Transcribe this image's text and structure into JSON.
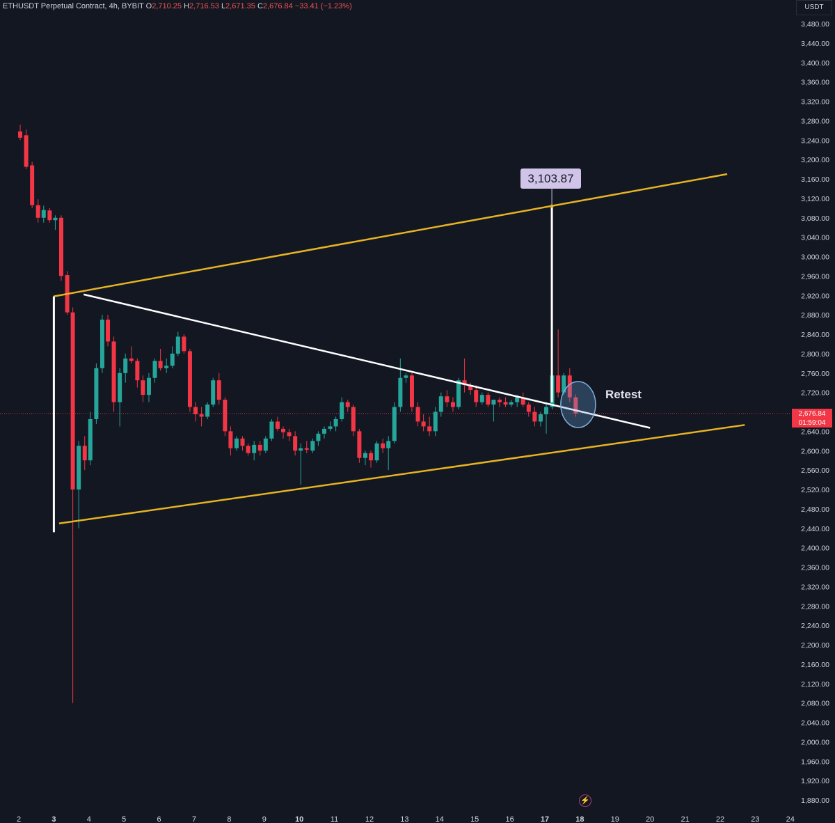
{
  "header": {
    "symbol": "ETHUSDT Perpetual Contract, 4h, BYBIT",
    "open_label": "O",
    "open": "2,710.25",
    "high_label": "H",
    "high": "2,716.53",
    "low_label": "L",
    "low": "2,671.35",
    "close_label": "C",
    "close": "2,676.84",
    "change": "−33.41 (−1.23%)"
  },
  "currency_button": "USDT",
  "current_price": {
    "price": "2,676.84",
    "countdown": "01:59:04"
  },
  "annotations": {
    "target_label": "3,103.87",
    "retest_label": "Retest"
  },
  "icons": {
    "replay": "lightning-icon"
  },
  "colors": {
    "background": "#131722",
    "up": "#26a69a",
    "down": "#f23645",
    "channel": "#e6b422",
    "trendline": "#ffffff",
    "price_line": "#f23645"
  },
  "chart_data": {
    "type": "candlestick",
    "title": "ETHUSDT Perpetual Contract, 4h, BYBIT",
    "ylim": [
      1860,
      3500
    ],
    "y_ticks": [
      3480,
      3440,
      3400,
      3360,
      3320,
      3280,
      3240,
      3200,
      3160,
      3120,
      3080,
      3040,
      3000,
      2960,
      2920,
      2880,
      2840,
      2800,
      2760,
      2720,
      2640,
      2600,
      2560,
      2520,
      2480,
      2440,
      2400,
      2360,
      2320,
      2280,
      2240,
      2200,
      2160,
      2120,
      2080,
      2040,
      2000,
      1960,
      1920,
      1880
    ],
    "y_tick_labels": [
      "3,480.00",
      "3,440.00",
      "3,400.00",
      "3,360.00",
      "3,320.00",
      "3,280.00",
      "3,240.00",
      "3,200.00",
      "3,160.00",
      "3,120.00",
      "3,080.00",
      "3,040.00",
      "3,000.00",
      "2,960.00",
      "2,920.00",
      "2,880.00",
      "2,840.00",
      "2,800.00",
      "2,760.00",
      "2,720.00",
      "2,640.00",
      "2,600.00",
      "2,560.00",
      "2,520.00",
      "2,480.00",
      "2,440.00",
      "2,400.00",
      "2,360.00",
      "2,320.00",
      "2,280.00",
      "2,240.00",
      "2,200.00",
      "2,160.00",
      "2,120.00",
      "2,080.00",
      "2,040.00",
      "2,000.00",
      "1,960.00",
      "1,920.00",
      "1,880.00"
    ],
    "x_ticks": [
      2,
      3,
      4,
      5,
      6,
      7,
      8,
      9,
      10,
      11,
      12,
      13,
      14,
      15,
      16,
      17,
      18,
      19,
      20,
      21,
      22,
      23,
      24
    ],
    "x_tick_labels": [
      "2",
      "3",
      "4",
      "5",
      "6",
      "7",
      "8",
      "9",
      "10",
      "11",
      "12",
      "13",
      "14",
      "15",
      "16",
      "17",
      "18",
      "19",
      "20",
      "21",
      "22",
      "23",
      "24"
    ],
    "x_tick_bold": [
      3,
      10,
      17,
      18
    ],
    "candles": [
      {
        "x": 2.04,
        "o": 3258,
        "h": 3272,
        "l": 3240,
        "c": 3245
      },
      {
        "x": 2.21,
        "o": 3250,
        "h": 3262,
        "l": 3180,
        "c": 3185
      },
      {
        "x": 2.38,
        "o": 3188,
        "h": 3195,
        "l": 3100,
        "c": 3106
      },
      {
        "x": 2.55,
        "o": 3106,
        "h": 3118,
        "l": 3070,
        "c": 3080
      },
      {
        "x": 2.71,
        "o": 3080,
        "h": 3105,
        "l": 3070,
        "c": 3096
      },
      {
        "x": 2.88,
        "o": 3095,
        "h": 3100,
        "l": 3070,
        "c": 3075
      },
      {
        "x": 3.04,
        "o": 3075,
        "h": 3085,
        "l": 3055,
        "c": 3080
      },
      {
        "x": 3.21,
        "o": 3080,
        "h": 3085,
        "l": 2950,
        "c": 2960
      },
      {
        "x": 3.38,
        "o": 2962,
        "h": 2970,
        "l": 2880,
        "c": 2885
      },
      {
        "x": 3.54,
        "o": 2885,
        "h": 2895,
        "l": 2080,
        "c": 2520
      },
      {
        "x": 3.71,
        "o": 2520,
        "h": 2620,
        "l": 2440,
        "c": 2610
      },
      {
        "x": 3.88,
        "o": 2610,
        "h": 2630,
        "l": 2560,
        "c": 2580
      },
      {
        "x": 4.04,
        "o": 2580,
        "h": 2680,
        "l": 2570,
        "c": 2665
      },
      {
        "x": 4.21,
        "o": 2665,
        "h": 2780,
        "l": 2655,
        "c": 2770
      },
      {
        "x": 4.38,
        "o": 2770,
        "h": 2880,
        "l": 2760,
        "c": 2870
      },
      {
        "x": 4.54,
        "o": 2870,
        "h": 2880,
        "l": 2815,
        "c": 2825
      },
      {
        "x": 4.71,
        "o": 2825,
        "h": 2835,
        "l": 2680,
        "c": 2700
      },
      {
        "x": 4.88,
        "o": 2700,
        "h": 2770,
        "l": 2650,
        "c": 2760
      },
      {
        "x": 5.04,
        "o": 2760,
        "h": 2800,
        "l": 2740,
        "c": 2790
      },
      {
        "x": 5.21,
        "o": 2790,
        "h": 2815,
        "l": 2780,
        "c": 2785
      },
      {
        "x": 5.38,
        "o": 2785,
        "h": 2790,
        "l": 2730,
        "c": 2745
      },
      {
        "x": 5.54,
        "o": 2745,
        "h": 2755,
        "l": 2700,
        "c": 2715
      },
      {
        "x": 5.71,
        "o": 2715,
        "h": 2760,
        "l": 2700,
        "c": 2750
      },
      {
        "x": 5.88,
        "o": 2750,
        "h": 2790,
        "l": 2740,
        "c": 2785
      },
      {
        "x": 6.04,
        "o": 2785,
        "h": 2810,
        "l": 2765,
        "c": 2770
      },
      {
        "x": 6.21,
        "o": 2770,
        "h": 2790,
        "l": 2760,
        "c": 2775
      },
      {
        "x": 6.38,
        "o": 2775,
        "h": 2815,
        "l": 2770,
        "c": 2800
      },
      {
        "x": 6.54,
        "o": 2800,
        "h": 2845,
        "l": 2795,
        "c": 2835
      },
      {
        "x": 6.71,
        "o": 2835,
        "h": 2840,
        "l": 2800,
        "c": 2805
      },
      {
        "x": 6.88,
        "o": 2805,
        "h": 2810,
        "l": 2680,
        "c": 2690
      },
      {
        "x": 7.04,
        "o": 2690,
        "h": 2700,
        "l": 2660,
        "c": 2675
      },
      {
        "x": 7.21,
        "o": 2675,
        "h": 2690,
        "l": 2650,
        "c": 2670
      },
      {
        "x": 7.38,
        "o": 2670,
        "h": 2700,
        "l": 2665,
        "c": 2695
      },
      {
        "x": 7.54,
        "o": 2695,
        "h": 2750,
        "l": 2690,
        "c": 2745
      },
      {
        "x": 7.71,
        "o": 2745,
        "h": 2760,
        "l": 2695,
        "c": 2705
      },
      {
        "x": 7.88,
        "o": 2705,
        "h": 2710,
        "l": 2630,
        "c": 2640
      },
      {
        "x": 8.04,
        "o": 2640,
        "h": 2650,
        "l": 2590,
        "c": 2605
      },
      {
        "x": 8.21,
        "o": 2605,
        "h": 2630,
        "l": 2600,
        "c": 2625
      },
      {
        "x": 8.38,
        "o": 2625,
        "h": 2630,
        "l": 2600,
        "c": 2610
      },
      {
        "x": 8.54,
        "o": 2610,
        "h": 2615,
        "l": 2590,
        "c": 2595
      },
      {
        "x": 8.71,
        "o": 2595,
        "h": 2620,
        "l": 2580,
        "c": 2612
      },
      {
        "x": 8.88,
        "o": 2612,
        "h": 2620,
        "l": 2590,
        "c": 2600
      },
      {
        "x": 9.04,
        "o": 2600,
        "h": 2630,
        "l": 2595,
        "c": 2625
      },
      {
        "x": 9.21,
        "o": 2625,
        "h": 2665,
        "l": 2620,
        "c": 2660
      },
      {
        "x": 9.38,
        "o": 2660,
        "h": 2670,
        "l": 2640,
        "c": 2645
      },
      {
        "x": 9.54,
        "o": 2645,
        "h": 2650,
        "l": 2625,
        "c": 2638
      },
      {
        "x": 9.71,
        "o": 2638,
        "h": 2645,
        "l": 2620,
        "c": 2630
      },
      {
        "x": 9.88,
        "o": 2630,
        "h": 2640,
        "l": 2590,
        "c": 2600
      },
      {
        "x": 10.04,
        "o": 2600,
        "h": 2615,
        "l": 2530,
        "c": 2605
      },
      {
        "x": 10.21,
        "o": 2605,
        "h": 2620,
        "l": 2595,
        "c": 2602
      },
      {
        "x": 10.38,
        "o": 2600,
        "h": 2625,
        "l": 2595,
        "c": 2620
      },
      {
        "x": 10.54,
        "o": 2620,
        "h": 2640,
        "l": 2610,
        "c": 2635
      },
      {
        "x": 10.71,
        "o": 2635,
        "h": 2650,
        "l": 2625,
        "c": 2645
      },
      {
        "x": 10.88,
        "o": 2645,
        "h": 2660,
        "l": 2640,
        "c": 2650
      },
      {
        "x": 11.04,
        "o": 2650,
        "h": 2670,
        "l": 2640,
        "c": 2665
      },
      {
        "x": 11.21,
        "o": 2665,
        "h": 2710,
        "l": 2660,
        "c": 2700
      },
      {
        "x": 11.38,
        "o": 2700,
        "h": 2705,
        "l": 2680,
        "c": 2690
      },
      {
        "x": 11.54,
        "o": 2690,
        "h": 2695,
        "l": 2630,
        "c": 2640
      },
      {
        "x": 11.71,
        "o": 2640,
        "h": 2645,
        "l": 2575,
        "c": 2585
      },
      {
        "x": 11.88,
        "o": 2585,
        "h": 2600,
        "l": 2570,
        "c": 2595
      },
      {
        "x": 12.04,
        "o": 2595,
        "h": 2600,
        "l": 2565,
        "c": 2580
      },
      {
        "x": 12.21,
        "o": 2580,
        "h": 2620,
        "l": 2575,
        "c": 2615
      },
      {
        "x": 12.38,
        "o": 2615,
        "h": 2625,
        "l": 2595,
        "c": 2605
      },
      {
        "x": 12.54,
        "o": 2605,
        "h": 2630,
        "l": 2560,
        "c": 2620
      },
      {
        "x": 12.71,
        "o": 2620,
        "h": 2700,
        "l": 2615,
        "c": 2690
      },
      {
        "x": 12.88,
        "o": 2690,
        "h": 2790,
        "l": 2680,
        "c": 2750
      },
      {
        "x": 13.04,
        "o": 2750,
        "h": 2760,
        "l": 2740,
        "c": 2755
      },
      {
        "x": 13.21,
        "o": 2755,
        "h": 2760,
        "l": 2680,
        "c": 2690
      },
      {
        "x": 13.38,
        "o": 2690,
        "h": 2700,
        "l": 2650,
        "c": 2660
      },
      {
        "x": 13.54,
        "o": 2660,
        "h": 2675,
        "l": 2640,
        "c": 2650
      },
      {
        "x": 13.71,
        "o": 2650,
        "h": 2670,
        "l": 2630,
        "c": 2640
      },
      {
        "x": 13.88,
        "o": 2640,
        "h": 2690,
        "l": 2630,
        "c": 2680
      },
      {
        "x": 14.04,
        "o": 2680,
        "h": 2720,
        "l": 2670,
        "c": 2712
      },
      {
        "x": 14.21,
        "o": 2712,
        "h": 2725,
        "l": 2690,
        "c": 2700
      },
      {
        "x": 14.38,
        "o": 2700,
        "h": 2710,
        "l": 2680,
        "c": 2690
      },
      {
        "x": 14.54,
        "o": 2690,
        "h": 2750,
        "l": 2685,
        "c": 2745
      },
      {
        "x": 14.71,
        "o": 2745,
        "h": 2790,
        "l": 2720,
        "c": 2735
      },
      {
        "x": 14.88,
        "o": 2735,
        "h": 2740,
        "l": 2715,
        "c": 2725
      },
      {
        "x": 15.04,
        "o": 2725,
        "h": 2735,
        "l": 2690,
        "c": 2700
      },
      {
        "x": 15.21,
        "o": 2700,
        "h": 2720,
        "l": 2695,
        "c": 2715
      },
      {
        "x": 15.38,
        "o": 2715,
        "h": 2720,
        "l": 2690,
        "c": 2695
      },
      {
        "x": 15.54,
        "o": 2695,
        "h": 2700,
        "l": 2660,
        "c": 2705
      },
      {
        "x": 15.71,
        "o": 2705,
        "h": 2710,
        "l": 2690,
        "c": 2700
      },
      {
        "x": 15.88,
        "o": 2700,
        "h": 2710,
        "l": 2690,
        "c": 2695
      },
      {
        "x": 16.04,
        "o": 2695,
        "h": 2705,
        "l": 2690,
        "c": 2700
      },
      {
        "x": 16.21,
        "o": 2700,
        "h": 2715,
        "l": 2690,
        "c": 2710
      },
      {
        "x": 16.38,
        "o": 2710,
        "h": 2720,
        "l": 2690,
        "c": 2695
      },
      {
        "x": 16.54,
        "o": 2695,
        "h": 2700,
        "l": 2670,
        "c": 2680
      },
      {
        "x": 16.71,
        "o": 2680,
        "h": 2690,
        "l": 2650,
        "c": 2660
      },
      {
        "x": 16.88,
        "o": 2660,
        "h": 2680,
        "l": 2650,
        "c": 2675
      },
      {
        "x": 17.04,
        "o": 2675,
        "h": 2700,
        "l": 2635,
        "c": 2690
      },
      {
        "x": 17.21,
        "o": 2690,
        "h": 2760,
        "l": 2685,
        "c": 2755
      },
      {
        "x": 17.38,
        "o": 2755,
        "h": 2850,
        "l": 2710,
        "c": 2720
      },
      {
        "x": 17.54,
        "o": 2720,
        "h": 2760,
        "l": 2715,
        "c": 2755
      },
      {
        "x": 17.71,
        "o": 2755,
        "h": 2770,
        "l": 2700,
        "c": 2710
      },
      {
        "x": 17.88,
        "o": 2710,
        "h": 2716,
        "l": 2670,
        "c": 2677
      }
    ],
    "channel_upper": {
      "x": [
        3.0,
        22.2
      ],
      "y": [
        2918,
        3170
      ]
    },
    "channel_lower": {
      "x": [
        3.15,
        22.7
      ],
      "y": [
        2450,
        2653
      ]
    },
    "triangle_trendline": {
      "x": [
        3.85,
        20.0
      ],
      "y": [
        2922,
        2647
      ]
    },
    "vertical_measure_left": {
      "x": 3.0,
      "y": [
        2918,
        2432
      ]
    },
    "vertical_measure_right": {
      "x": 17.2,
      "y": [
        3103.87,
        2700
      ]
    },
    "current_price": 2676.84,
    "retest_circle": {
      "x": 17.95,
      "y": 2695
    }
  }
}
